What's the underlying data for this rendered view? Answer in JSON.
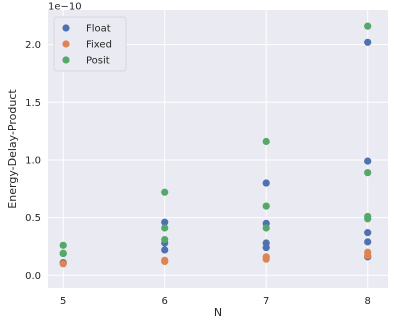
{
  "chart_data": {
    "type": "scatter",
    "xlabel": "N",
    "ylabel": "Energy-Delay-Product",
    "y_multiplier_label": "1e−10",
    "x_ticks": [
      5,
      6,
      7,
      8
    ],
    "y_ticks": [
      0.0,
      0.5,
      1.0,
      1.5,
      2.0
    ],
    "y_tick_labels": [
      "0.0",
      "0.5",
      "1.0",
      "1.5",
      "2.0"
    ],
    "xlim": [
      4.85,
      8.2
    ],
    "ylim": [
      -0.11,
      2.3
    ],
    "grid": true,
    "legend_position": "top-left",
    "series": [
      {
        "name": "Float",
        "color": "#4c72b0",
        "points": [
          [
            5,
            0.19
          ],
          [
            5,
            0.11
          ],
          [
            6,
            0.46
          ],
          [
            6,
            0.28
          ],
          [
            6,
            0.22
          ],
          [
            7,
            0.8
          ],
          [
            7,
            0.45
          ],
          [
            7,
            0.28
          ],
          [
            7,
            0.24
          ],
          [
            8,
            2.02
          ],
          [
            8,
            0.99
          ],
          [
            8,
            0.37
          ],
          [
            8,
            0.29
          ],
          [
            8,
            0.16
          ]
        ]
      },
      {
        "name": "Fixed",
        "color": "#dd8452",
        "points": [
          [
            5,
            0.1
          ],
          [
            6,
            0.13
          ],
          [
            6,
            0.12
          ],
          [
            7,
            0.16
          ],
          [
            7,
            0.14
          ],
          [
            8,
            0.2
          ],
          [
            8,
            0.17
          ]
        ]
      },
      {
        "name": "Posit",
        "color": "#55a868",
        "points": [
          [
            5,
            0.26
          ],
          [
            5,
            0.19
          ],
          [
            6,
            0.72
          ],
          [
            6,
            0.41
          ],
          [
            6,
            0.31
          ],
          [
            7,
            1.16
          ],
          [
            7,
            0.6
          ],
          [
            7,
            0.41
          ],
          [
            8,
            2.16
          ],
          [
            8,
            0.89
          ],
          [
            8,
            0.51
          ],
          [
            8,
            0.49
          ]
        ]
      }
    ]
  }
}
